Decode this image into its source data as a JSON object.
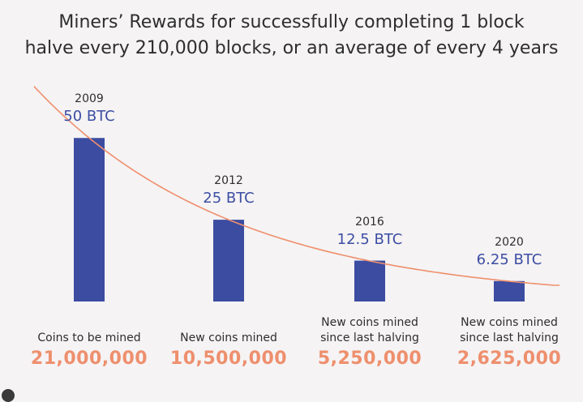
{
  "title_line1": "Miners’ Rewards for successfully completing 1 block",
  "title_line2": "halve every 210,000 blocks, or an average of every 4 years",
  "colors": {
    "bar": "#3c4ca1",
    "curve": "#ef8f6c",
    "reward_text": "#3d4ea3",
    "amount_text": "#ee8f6d",
    "background": "#f5f3f4"
  },
  "chart_data": {
    "type": "bar",
    "categories": [
      "2009",
      "2012",
      "2016",
      "2020"
    ],
    "series": [
      {
        "values": [
          50,
          25,
          12.5,
          6.25
        ]
      }
    ],
    "bar_labels": [
      "50 BTC",
      "25 BTC",
      "12.5 BTC",
      "6.25 BTC"
    ],
    "trend": "exponential decay curve through bar tops",
    "ylim": [
      0,
      55
    ],
    "grid": false,
    "captions": [
      [
        "Coins to be mined"
      ],
      [
        "New coins mined"
      ],
      [
        "New coins mined",
        "since last halving"
      ],
      [
        "New coins mined",
        "since last halving"
      ]
    ],
    "amounts": [
      "21,000,000",
      "10,500,000",
      "5,250,000",
      "2,625,000"
    ]
  }
}
